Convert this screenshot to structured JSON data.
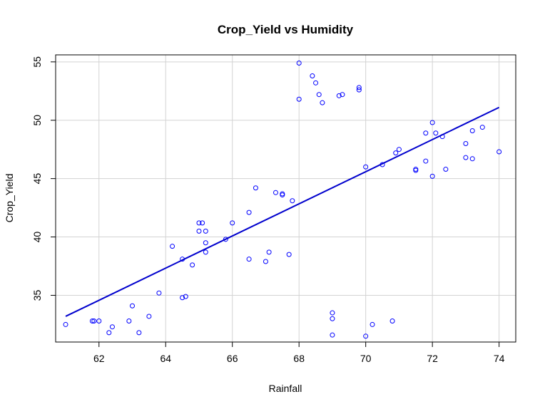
{
  "chart_data": {
    "type": "scatter",
    "title": "Crop_Yield vs Humidity",
    "xlabel": "Rainfall",
    "ylabel": "Crop_Yield",
    "xlim": [
      60.7,
      74.5
    ],
    "ylim": [
      31.0,
      55.6
    ],
    "x_ticks": [
      62,
      64,
      66,
      68,
      70,
      72,
      74
    ],
    "y_ticks": [
      35,
      40,
      45,
      50,
      55
    ],
    "grid": true,
    "legend": "none",
    "point_color": "#0000ff",
    "line_color": "#0000cd",
    "points": [
      [
        61.0,
        32.5
      ],
      [
        61.8,
        32.8
      ],
      [
        61.85,
        32.8
      ],
      [
        62.0,
        32.8
      ],
      [
        62.3,
        31.8
      ],
      [
        62.4,
        32.3
      ],
      [
        62.9,
        32.8
      ],
      [
        63.0,
        34.1
      ],
      [
        63.2,
        31.8
      ],
      [
        63.5,
        33.2
      ],
      [
        63.8,
        35.2
      ],
      [
        64.2,
        39.2
      ],
      [
        64.5,
        34.8
      ],
      [
        64.5,
        38.1
      ],
      [
        64.6,
        34.9
      ],
      [
        64.8,
        37.6
      ],
      [
        65.0,
        41.2
      ],
      [
        65.0,
        40.5
      ],
      [
        65.1,
        41.2
      ],
      [
        65.2,
        40.5
      ],
      [
        65.2,
        39.5
      ],
      [
        65.2,
        38.7
      ],
      [
        65.8,
        39.8
      ],
      [
        66.0,
        41.2
      ],
      [
        66.5,
        42.1
      ],
      [
        66.5,
        38.1
      ],
      [
        66.7,
        44.2
      ],
      [
        67.0,
        37.9
      ],
      [
        67.1,
        38.7
      ],
      [
        67.3,
        43.8
      ],
      [
        67.5,
        43.7
      ],
      [
        67.5,
        43.6
      ],
      [
        67.7,
        38.5
      ],
      [
        67.8,
        43.1
      ],
      [
        68.0,
        54.9
      ],
      [
        68.0,
        51.8
      ],
      [
        68.4,
        53.8
      ],
      [
        68.5,
        53.2
      ],
      [
        68.6,
        52.2
      ],
      [
        68.7,
        51.5
      ],
      [
        69.0,
        33.5
      ],
      [
        69.0,
        33.0
      ],
      [
        69.0,
        31.6
      ],
      [
        69.2,
        52.1
      ],
      [
        69.3,
        52.2
      ],
      [
        69.8,
        52.8
      ],
      [
        69.8,
        52.6
      ],
      [
        70.0,
        31.5
      ],
      [
        70.0,
        46.0
      ],
      [
        70.2,
        32.5
      ],
      [
        70.5,
        46.2
      ],
      [
        70.8,
        32.8
      ],
      [
        70.9,
        47.2
      ],
      [
        71.0,
        47.5
      ],
      [
        71.5,
        45.7
      ],
      [
        71.5,
        45.8
      ],
      [
        71.8,
        48.9
      ],
      [
        71.8,
        46.5
      ],
      [
        72.0,
        49.8
      ],
      [
        72.0,
        45.2
      ],
      [
        72.1,
        48.9
      ],
      [
        72.3,
        48.6
      ],
      [
        72.4,
        45.8
      ],
      [
        73.0,
        48.0
      ],
      [
        73.0,
        46.8
      ],
      [
        73.2,
        49.1
      ],
      [
        73.2,
        46.7
      ],
      [
        73.5,
        49.4
      ],
      [
        74.0,
        47.3
      ]
    ],
    "trendline": {
      "x": [
        61.0,
        74.0
      ],
      "y": [
        33.2,
        51.1
      ]
    }
  }
}
